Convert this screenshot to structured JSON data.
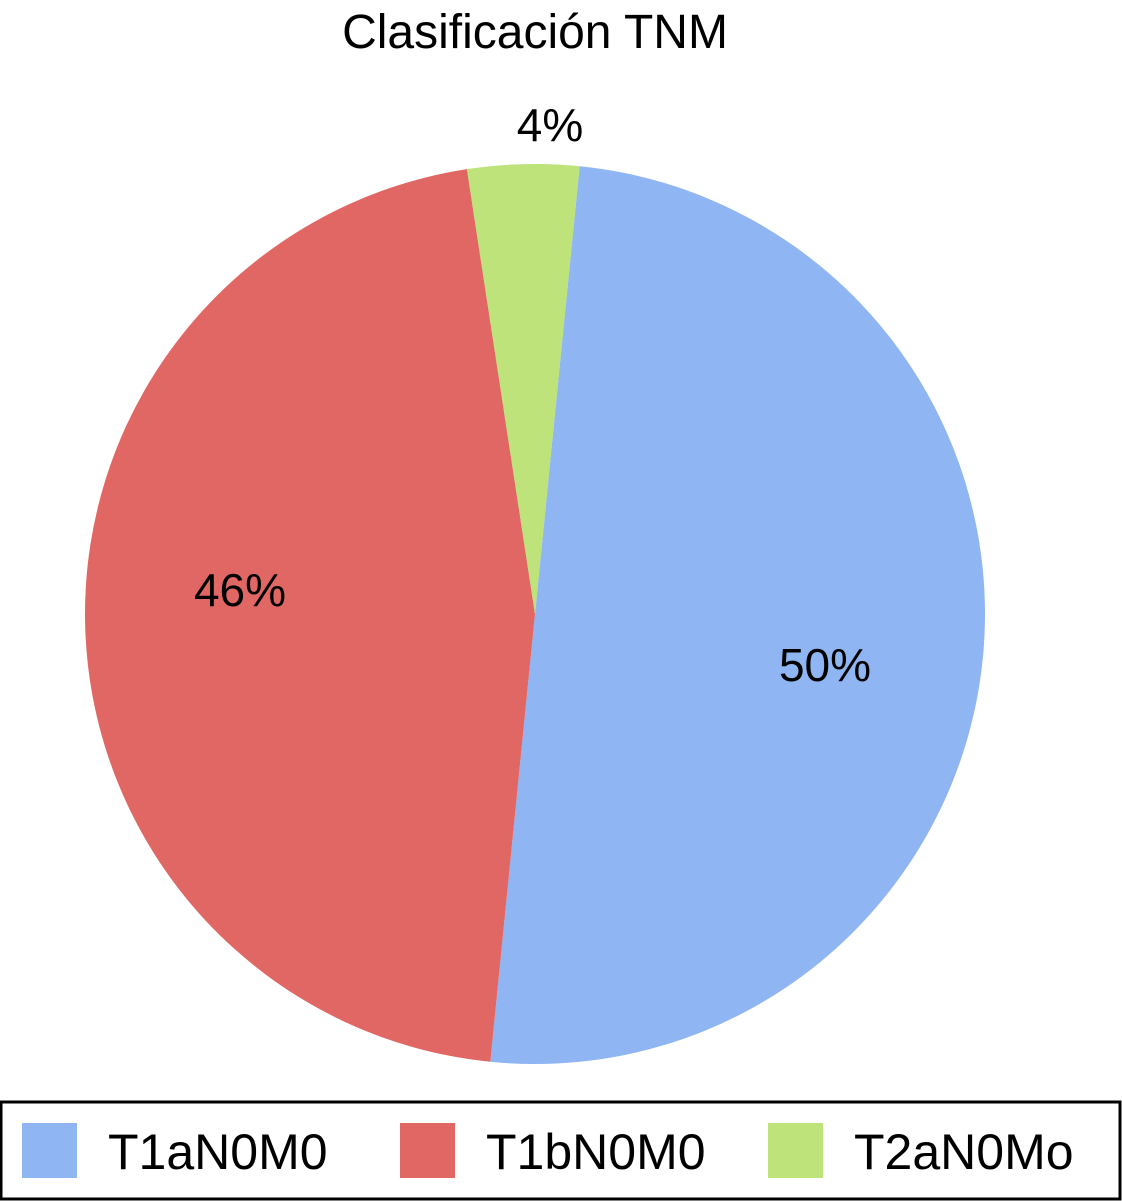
{
  "chart_data": {
    "type": "pie",
    "title": "Clasificación TNM",
    "categories": [
      "T1aN0M0",
      "T1bN0M0",
      "T2aN0Mo"
    ],
    "values": [
      50,
      46,
      4
    ],
    "data_labels": [
      "50%",
      "46%",
      "4%"
    ],
    "colors": [
      "#8fb5f2",
      "#e06764",
      "#bde37a"
    ],
    "legend_position": "bottom"
  }
}
